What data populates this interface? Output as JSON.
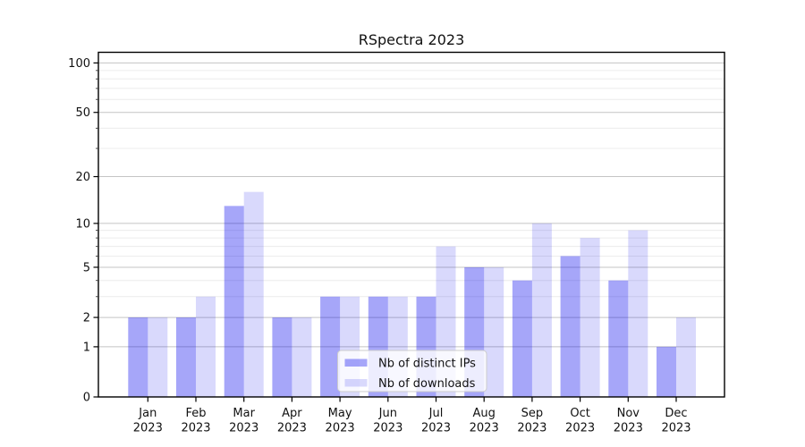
{
  "chart_data": {
    "type": "bar",
    "title": "RSpectra 2023",
    "categories": [
      "Jan",
      "Feb",
      "Mar",
      "Apr",
      "May",
      "Jun",
      "Jul",
      "Aug",
      "Sep",
      "Oct",
      "Nov",
      "Dec"
    ],
    "category_sublabel": "2023",
    "series": [
      {
        "name": "Nb of distinct IPs",
        "color": "#0000ee",
        "opacity": 0.35,
        "values": [
          2,
          2,
          13,
          2,
          3,
          3,
          3,
          5,
          4,
          6,
          4,
          1
        ]
      },
      {
        "name": "Nb of downloads",
        "color": "#0000ee",
        "opacity": 0.15,
        "values": [
          2,
          3,
          16,
          2,
          3,
          3,
          7,
          5,
          10,
          8,
          9,
          2
        ]
      }
    ],
    "y_scale": "log10(value+1)",
    "y_ticks": [
      0,
      1,
      2,
      5,
      10,
      20,
      50,
      100
    ],
    "y_minor_ticks": [
      3,
      4,
      6,
      7,
      8,
      9,
      30,
      40,
      60,
      70,
      80,
      90
    ],
    "ylim": [
      0,
      116
    ],
    "grid": true,
    "legend_position": "lower center",
    "colors": {
      "grid_major": "#c4c4c4",
      "grid_minor": "#ececec",
      "legend_background": "rgba(255,255,255,0.8)",
      "legend_border": "#cccccc",
      "text": "#111111"
    }
  }
}
